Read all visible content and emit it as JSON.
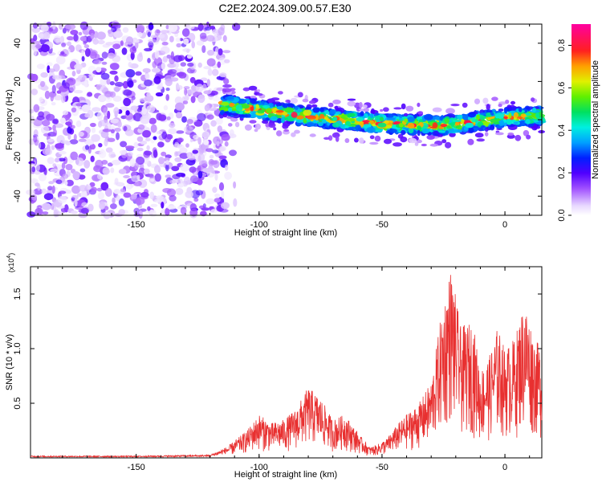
{
  "figure": {
    "title": "C2E2.2024.309.00.57.E30"
  },
  "chart_data": [
    {
      "type": "heatmap",
      "title": "C2E2.2024.309.00.57.E30",
      "xlabel": "Height of straight line (km)",
      "ylabel": "Frequency (Hz)",
      "xlim": [
        -193,
        15
      ],
      "ylim": [
        -50,
        50
      ],
      "xticks": [
        -150,
        -100,
        -50,
        0
      ],
      "yticks": [
        -40,
        -20,
        0,
        20,
        40
      ],
      "colorbar": {
        "label": "Normalized spectral amplitude",
        "range": [
          0,
          0.9
        ],
        "ticks": [
          0.0,
          0.2,
          0.4,
          0.6,
          0.8
        ],
        "colormap": "rainbow (white-purple-blue-cyan-green-yellow-red-magenta)"
      },
      "bands": [
        {
          "name": "noise region",
          "x_range": [
            -193,
            -113
          ],
          "y_range": [
            -50,
            50
          ],
          "level": 0.1
        },
        {
          "name": "signal trace",
          "x_range": [
            -115,
            15
          ],
          "center_y_at": [
            [
              -115,
              8
            ],
            [
              -100,
              5
            ],
            [
              -75,
              1
            ],
            [
              -50,
              -2
            ],
            [
              -25,
              -3
            ],
            [
              0,
              1
            ],
            [
              15,
              2
            ]
          ],
          "level_range": [
            0.2,
            0.9
          ]
        }
      ]
    },
    {
      "type": "line",
      "title": "",
      "xlabel": "Height of straight line (km)",
      "ylabel": "SNR (10 * v/v)",
      "y_multiplier": "(x10^4)",
      "xlim": [
        -193,
        15
      ],
      "ylim": [
        0,
        1.75
      ],
      "xticks": [
        -150,
        -100,
        -50,
        0
      ],
      "yticks": [
        0.5,
        1.0,
        1.5
      ],
      "color": "#e83030",
      "envelope": [
        [
          -193,
          0.02
        ],
        [
          -150,
          0.02
        ],
        [
          -120,
          0.03
        ],
        [
          -112,
          0.12
        ],
        [
          -105,
          0.25
        ],
        [
          -100,
          0.4
        ],
        [
          -95,
          0.32
        ],
        [
          -90,
          0.35
        ],
        [
          -85,
          0.45
        ],
        [
          -80,
          0.65
        ],
        [
          -75,
          0.55
        ],
        [
          -70,
          0.35
        ],
        [
          -65,
          0.4
        ],
        [
          -62,
          0.3
        ],
        [
          -58,
          0.18
        ],
        [
          -55,
          0.1
        ],
        [
          -52,
          0.12
        ],
        [
          -48,
          0.18
        ],
        [
          -44,
          0.3
        ],
        [
          -40,
          0.4
        ],
        [
          -35,
          0.5
        ],
        [
          -30,
          0.7
        ],
        [
          -26,
          1.3
        ],
        [
          -22,
          1.75
        ],
        [
          -18,
          1.2
        ],
        [
          -13,
          1.25
        ],
        [
          -10,
          0.8
        ],
        [
          -6,
          0.95
        ],
        [
          -3,
          1.2
        ],
        [
          0,
          1.0
        ],
        [
          4,
          1.1
        ],
        [
          8,
          1.45
        ],
        [
          12,
          1.1
        ],
        [
          15,
          1.0
        ]
      ]
    }
  ]
}
